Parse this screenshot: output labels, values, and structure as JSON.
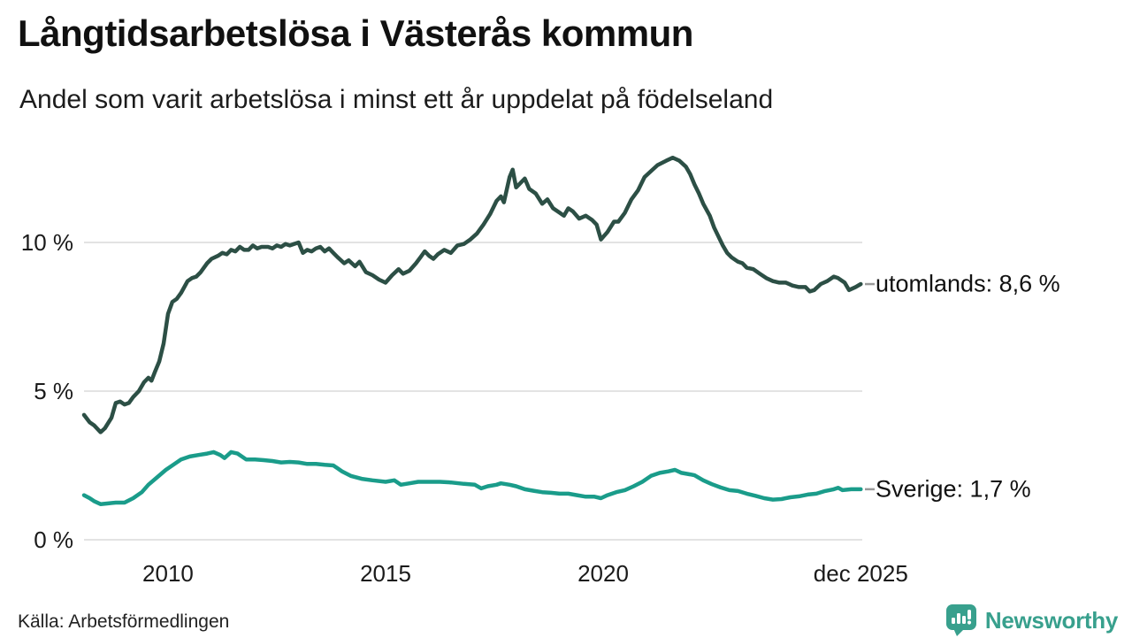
{
  "header": {
    "title": "Långtidsarbetslösa i Västerås kommun",
    "subtitle": "Andel som varit arbetslösa i minst ett år uppdelat på födelseland"
  },
  "footer": {
    "source": "Källa: Arbetsförmedlingen",
    "brand": "Newsworthy"
  },
  "colors": {
    "series_utomlands": "#2c4f45",
    "series_sverige": "#1a9c8a",
    "gridline": "#e3e3e3",
    "axis_text": "#1a1a1a",
    "label_connector": "#999999",
    "brand_teal": "#38a08d",
    "background": "#ffffff"
  },
  "chart_data": {
    "type": "line",
    "title": "Långtidsarbetslösa i Västerås kommun",
    "subtitle": "Andel som varit arbetslösa i minst ett år uppdelat på födelseland",
    "xlabel": "",
    "ylabel": "",
    "x_range": [
      2008.07,
      2025.92
    ],
    "ylim": [
      0,
      13.2
    ],
    "grid": "horizontal",
    "legend_position": "right-end-labels",
    "y_ticks": [
      {
        "value": 0,
        "label": "0 %"
      },
      {
        "value": 5,
        "label": "5 %"
      },
      {
        "value": 10,
        "label": "10 %"
      }
    ],
    "x_ticks": [
      {
        "year": 2010,
        "label": "2010"
      },
      {
        "year": 2015,
        "label": "2015"
      },
      {
        "year": 2020,
        "label": "2020"
      },
      {
        "year": 2025.92,
        "label": "dec 2025"
      }
    ],
    "series": [
      {
        "name": "utomlands",
        "label": "utomlands: 8,6 %",
        "last_value_label": "8,6 %",
        "color": "#2c4f45",
        "points": [
          [
            2008.07,
            4.2
          ],
          [
            2008.2,
            3.95
          ],
          [
            2008.3,
            3.85
          ],
          [
            2008.45,
            3.62
          ],
          [
            2008.55,
            3.75
          ],
          [
            2008.7,
            4.1
          ],
          [
            2008.8,
            4.6
          ],
          [
            2008.9,
            4.65
          ],
          [
            2009.0,
            4.55
          ],
          [
            2009.1,
            4.6
          ],
          [
            2009.2,
            4.8
          ],
          [
            2009.33,
            5.0
          ],
          [
            2009.45,
            5.3
          ],
          [
            2009.55,
            5.45
          ],
          [
            2009.62,
            5.35
          ],
          [
            2009.7,
            5.65
          ],
          [
            2009.8,
            6.0
          ],
          [
            2009.9,
            6.6
          ],
          [
            2010.0,
            7.6
          ],
          [
            2010.1,
            8.0
          ],
          [
            2010.2,
            8.1
          ],
          [
            2010.3,
            8.3
          ],
          [
            2010.45,
            8.7
          ],
          [
            2010.55,
            8.8
          ],
          [
            2010.65,
            8.85
          ],
          [
            2010.75,
            9.0
          ],
          [
            2010.9,
            9.3
          ],
          [
            2011.0,
            9.45
          ],
          [
            2011.15,
            9.55
          ],
          [
            2011.25,
            9.65
          ],
          [
            2011.35,
            9.6
          ],
          [
            2011.45,
            9.75
          ],
          [
            2011.55,
            9.7
          ],
          [
            2011.65,
            9.85
          ],
          [
            2011.75,
            9.75
          ],
          [
            2011.85,
            9.75
          ],
          [
            2011.95,
            9.9
          ],
          [
            2012.05,
            9.8
          ],
          [
            2012.15,
            9.85
          ],
          [
            2012.3,
            9.85
          ],
          [
            2012.4,
            9.8
          ],
          [
            2012.5,
            9.9
          ],
          [
            2012.6,
            9.85
          ],
          [
            2012.7,
            9.95
          ],
          [
            2012.8,
            9.9
          ],
          [
            2013.0,
            10.0
          ],
          [
            2013.1,
            9.65
          ],
          [
            2013.2,
            9.75
          ],
          [
            2013.3,
            9.7
          ],
          [
            2013.4,
            9.8
          ],
          [
            2013.5,
            9.85
          ],
          [
            2013.6,
            9.7
          ],
          [
            2013.7,
            9.8
          ],
          [
            2013.8,
            9.65
          ],
          [
            2013.9,
            9.5
          ],
          [
            2014.05,
            9.3
          ],
          [
            2014.15,
            9.4
          ],
          [
            2014.3,
            9.2
          ],
          [
            2014.4,
            9.35
          ],
          [
            2014.55,
            9.0
          ],
          [
            2014.7,
            8.9
          ],
          [
            2014.85,
            8.75
          ],
          [
            2015.0,
            8.65
          ],
          [
            2015.15,
            8.9
          ],
          [
            2015.3,
            9.1
          ],
          [
            2015.4,
            8.95
          ],
          [
            2015.55,
            9.05
          ],
          [
            2015.7,
            9.3
          ],
          [
            2015.8,
            9.5
          ],
          [
            2015.9,
            9.7
          ],
          [
            2016.0,
            9.55
          ],
          [
            2016.1,
            9.45
          ],
          [
            2016.2,
            9.6
          ],
          [
            2016.35,
            9.75
          ],
          [
            2016.5,
            9.65
          ],
          [
            2016.65,
            9.9
          ],
          [
            2016.8,
            9.95
          ],
          [
            2016.95,
            10.1
          ],
          [
            2017.1,
            10.3
          ],
          [
            2017.25,
            10.6
          ],
          [
            2017.4,
            10.95
          ],
          [
            2017.55,
            11.4
          ],
          [
            2017.65,
            11.55
          ],
          [
            2017.72,
            11.35
          ],
          [
            2017.85,
            12.2
          ],
          [
            2017.92,
            12.45
          ],
          [
            2018.0,
            11.85
          ],
          [
            2018.1,
            12.0
          ],
          [
            2018.2,
            12.15
          ],
          [
            2018.3,
            11.8
          ],
          [
            2018.45,
            11.65
          ],
          [
            2018.6,
            11.3
          ],
          [
            2018.72,
            11.45
          ],
          [
            2018.85,
            11.15
          ],
          [
            2019.0,
            11.0
          ],
          [
            2019.1,
            10.9
          ],
          [
            2019.2,
            11.15
          ],
          [
            2019.3,
            11.05
          ],
          [
            2019.45,
            10.8
          ],
          [
            2019.6,
            10.9
          ],
          [
            2019.75,
            10.75
          ],
          [
            2019.85,
            10.6
          ],
          [
            2019.95,
            10.1
          ],
          [
            2020.1,
            10.35
          ],
          [
            2020.25,
            10.7
          ],
          [
            2020.35,
            10.7
          ],
          [
            2020.5,
            11.0
          ],
          [
            2020.65,
            11.45
          ],
          [
            2020.8,
            11.75
          ],
          [
            2020.95,
            12.2
          ],
          [
            2021.1,
            12.4
          ],
          [
            2021.25,
            12.6
          ],
          [
            2021.45,
            12.75
          ],
          [
            2021.6,
            12.85
          ],
          [
            2021.75,
            12.75
          ],
          [
            2021.9,
            12.55
          ],
          [
            2022.0,
            12.3
          ],
          [
            2022.1,
            11.95
          ],
          [
            2022.2,
            11.65
          ],
          [
            2022.3,
            11.3
          ],
          [
            2022.45,
            10.9
          ],
          [
            2022.55,
            10.5
          ],
          [
            2022.65,
            10.2
          ],
          [
            2022.75,
            9.9
          ],
          [
            2022.85,
            9.65
          ],
          [
            2022.95,
            9.5
          ],
          [
            2023.1,
            9.35
          ],
          [
            2023.2,
            9.3
          ],
          [
            2023.3,
            9.15
          ],
          [
            2023.45,
            9.1
          ],
          [
            2023.6,
            8.95
          ],
          [
            2023.75,
            8.8
          ],
          [
            2023.9,
            8.7
          ],
          [
            2024.05,
            8.65
          ],
          [
            2024.2,
            8.65
          ],
          [
            2024.35,
            8.55
          ],
          [
            2024.5,
            8.5
          ],
          [
            2024.65,
            8.5
          ],
          [
            2024.75,
            8.35
          ],
          [
            2024.85,
            8.4
          ],
          [
            2025.0,
            8.6
          ],
          [
            2025.15,
            8.7
          ],
          [
            2025.3,
            8.85
          ],
          [
            2025.4,
            8.8
          ],
          [
            2025.55,
            8.65
          ],
          [
            2025.65,
            8.4
          ],
          [
            2025.8,
            8.5
          ],
          [
            2025.92,
            8.6
          ]
        ]
      },
      {
        "name": "Sverige",
        "label": "Sverige: 1,7 %",
        "last_value_label": "1,7 %",
        "color": "#1a9c8a",
        "points": [
          [
            2008.07,
            1.5
          ],
          [
            2008.2,
            1.4
          ],
          [
            2008.3,
            1.3
          ],
          [
            2008.45,
            1.2
          ],
          [
            2008.6,
            1.22
          ],
          [
            2008.8,
            1.25
          ],
          [
            2009.0,
            1.25
          ],
          [
            2009.2,
            1.4
          ],
          [
            2009.4,
            1.6
          ],
          [
            2009.55,
            1.85
          ],
          [
            2009.75,
            2.1
          ],
          [
            2009.95,
            2.35
          ],
          [
            2010.15,
            2.55
          ],
          [
            2010.3,
            2.7
          ],
          [
            2010.5,
            2.8
          ],
          [
            2010.7,
            2.85
          ],
          [
            2010.9,
            2.9
          ],
          [
            2011.05,
            2.95
          ],
          [
            2011.2,
            2.85
          ],
          [
            2011.3,
            2.75
          ],
          [
            2011.45,
            2.95
          ],
          [
            2011.6,
            2.9
          ],
          [
            2011.8,
            2.7
          ],
          [
            2012.0,
            2.7
          ],
          [
            2012.2,
            2.68
          ],
          [
            2012.4,
            2.65
          ],
          [
            2012.6,
            2.6
          ],
          [
            2012.8,
            2.62
          ],
          [
            2013.0,
            2.6
          ],
          [
            2013.2,
            2.55
          ],
          [
            2013.4,
            2.55
          ],
          [
            2013.6,
            2.52
          ],
          [
            2013.8,
            2.5
          ],
          [
            2014.0,
            2.3
          ],
          [
            2014.2,
            2.15
          ],
          [
            2014.45,
            2.05
          ],
          [
            2014.7,
            2.0
          ],
          [
            2015.0,
            1.95
          ],
          [
            2015.2,
            2.0
          ],
          [
            2015.35,
            1.85
          ],
          [
            2015.55,
            1.9
          ],
          [
            2015.75,
            1.95
          ],
          [
            2016.0,
            1.95
          ],
          [
            2016.25,
            1.95
          ],
          [
            2016.5,
            1.93
          ],
          [
            2016.8,
            1.88
          ],
          [
            2017.05,
            1.85
          ],
          [
            2017.2,
            1.73
          ],
          [
            2017.35,
            1.8
          ],
          [
            2017.55,
            1.85
          ],
          [
            2017.65,
            1.9
          ],
          [
            2017.85,
            1.85
          ],
          [
            2018.0,
            1.8
          ],
          [
            2018.2,
            1.7
          ],
          [
            2018.4,
            1.65
          ],
          [
            2018.6,
            1.6
          ],
          [
            2018.8,
            1.58
          ],
          [
            2019.0,
            1.55
          ],
          [
            2019.2,
            1.55
          ],
          [
            2019.4,
            1.5
          ],
          [
            2019.6,
            1.45
          ],
          [
            2019.8,
            1.45
          ],
          [
            2019.95,
            1.4
          ],
          [
            2020.1,
            1.5
          ],
          [
            2020.3,
            1.6
          ],
          [
            2020.5,
            1.67
          ],
          [
            2020.7,
            1.8
          ],
          [
            2020.9,
            1.95
          ],
          [
            2021.1,
            2.15
          ],
          [
            2021.3,
            2.25
          ],
          [
            2021.5,
            2.3
          ],
          [
            2021.65,
            2.35
          ],
          [
            2021.8,
            2.25
          ],
          [
            2022.0,
            2.2
          ],
          [
            2022.1,
            2.17
          ],
          [
            2022.3,
            2.0
          ],
          [
            2022.5,
            1.87
          ],
          [
            2022.7,
            1.76
          ],
          [
            2022.9,
            1.67
          ],
          [
            2023.1,
            1.64
          ],
          [
            2023.3,
            1.55
          ],
          [
            2023.5,
            1.48
          ],
          [
            2023.7,
            1.4
          ],
          [
            2023.9,
            1.35
          ],
          [
            2024.1,
            1.37
          ],
          [
            2024.3,
            1.43
          ],
          [
            2024.5,
            1.46
          ],
          [
            2024.7,
            1.52
          ],
          [
            2024.9,
            1.55
          ],
          [
            2025.1,
            1.64
          ],
          [
            2025.3,
            1.7
          ],
          [
            2025.4,
            1.75
          ],
          [
            2025.5,
            1.67
          ],
          [
            2025.7,
            1.7
          ],
          [
            2025.92,
            1.7
          ]
        ]
      }
    ]
  }
}
